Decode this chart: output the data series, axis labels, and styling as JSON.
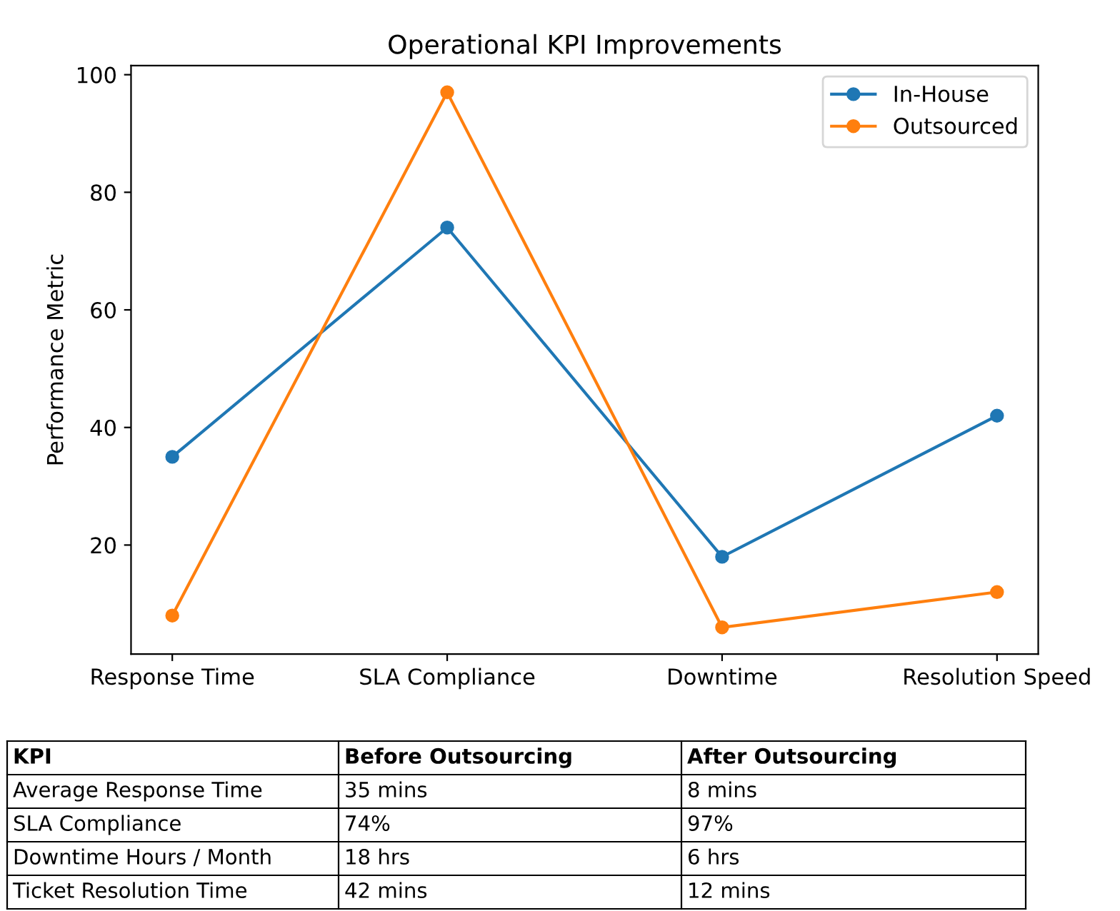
{
  "chart_data": {
    "type": "line",
    "title": "Operational KPI Improvements",
    "ylabel": "Performance Metric",
    "categories": [
      "Response Time",
      "SLA Compliance",
      "Downtime",
      "Resolution Speed"
    ],
    "series": [
      {
        "name": "In-House",
        "color": "#1f77b4",
        "values": [
          35,
          74,
          18,
          42
        ]
      },
      {
        "name": "Outsourced",
        "color": "#ff7f0e",
        "values": [
          8,
          97,
          6,
          12
        ]
      }
    ],
    "ylim": [
      1.45,
      101.55
    ],
    "yticks": [
      20,
      40,
      60,
      80,
      100
    ],
    "marker": "circle",
    "line_style": "solid",
    "legend": "top right",
    "grid": false,
    "annotations": [
      "KPI",
      "Before Outsourcing",
      "After Outsourcing",
      "Average Response Time",
      "35 mins",
      "8 mins",
      "SLA Compliance",
      "74%",
      "97%",
      "Downtime Hours / Month",
      "18 hrs",
      "6 hrs",
      "Ticket Resolution Time",
      "42 mins",
      "12 mins"
    ]
  }
}
